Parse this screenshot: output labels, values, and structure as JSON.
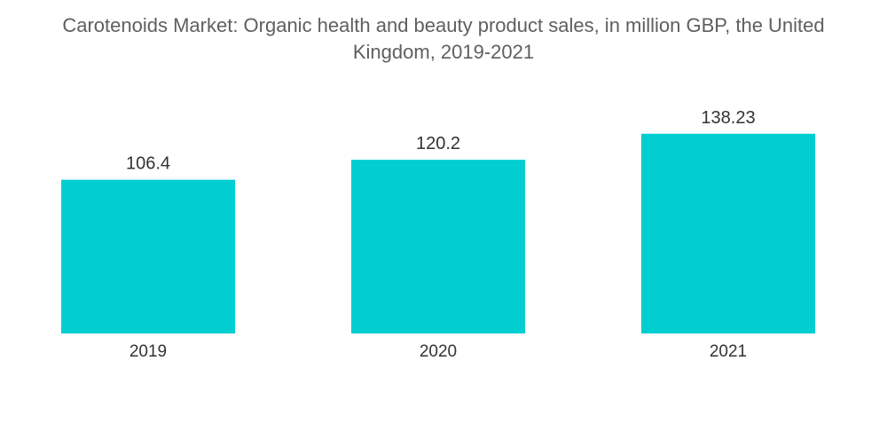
{
  "chart_data": {
    "type": "bar",
    "title_lines": [
      "Carotenoids Market: Organic health and beauty product sales, in million GBP, the United",
      "Kingdom, 2019-2021"
    ],
    "categories": [
      "2019",
      "2020",
      "2021"
    ],
    "values": [
      106.4,
      120.2,
      138.23
    ],
    "value_labels": [
      "106.4",
      "120.2",
      "138.23"
    ],
    "xlabel": "",
    "ylabel": "",
    "ylim": [
      0,
      151
    ],
    "grid": false,
    "legend": "none",
    "bar_color": "#00ced1"
  }
}
